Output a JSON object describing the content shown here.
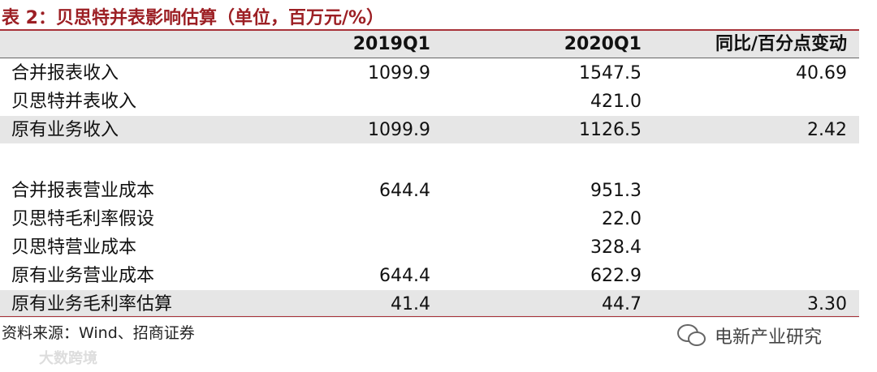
{
  "header": {
    "title": "表 2：贝思特并表影响估算（单位，百万元/%）"
  },
  "table": {
    "columns": [
      "2019Q1",
      "2020Q1",
      "同比/百分点变动"
    ],
    "rows": [
      [
        "合并报表收入",
        "1099.9",
        "1547.5",
        "40.69"
      ],
      [
        "贝思特并表收入",
        null,
        "421.0",
        null
      ],
      [
        "原有业务收入",
        "1099.9",
        "1126.5",
        "2.42"
      ],
      [
        "合并报表营业成本",
        "644.4",
        "951.3",
        null
      ],
      [
        "贝思特毛利率假设",
        null,
        "22.0",
        null
      ],
      [
        "贝思特营业成本",
        null,
        "328.4",
        null
      ],
      [
        "原有业务营业成本",
        "644.4",
        "622.9",
        null
      ],
      [
        "原有业务毛利率估算",
        "41.4",
        "44.7",
        "3.30"
      ]
    ]
  },
  "footer": {
    "source": "资料来源：Wind、招商证券",
    "watermark": "电新产业研究",
    "watermark2": "大数跨境"
  }
}
